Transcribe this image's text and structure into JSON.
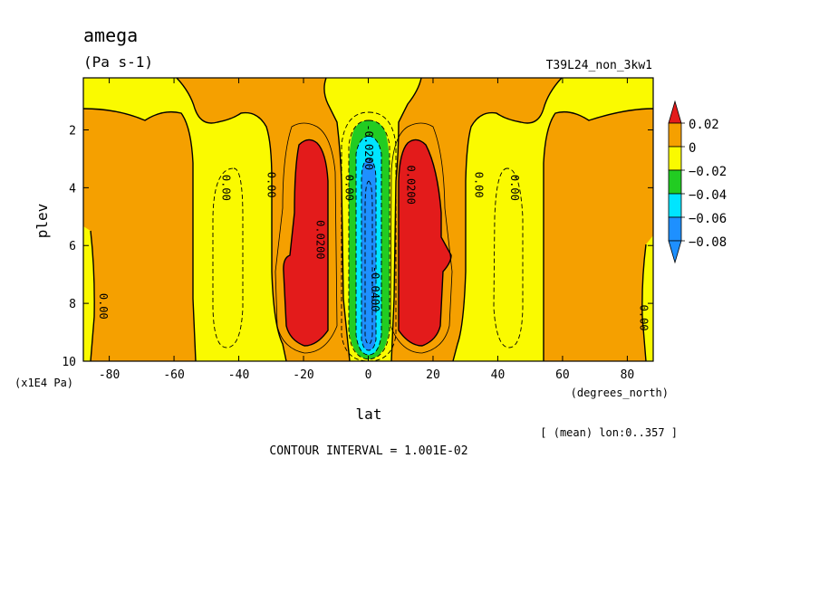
{
  "chart_data": {
    "type": "heatmap",
    "title": "amega",
    "units": "(Pa s-1)",
    "run_label": "T39L24_non_3kw1",
    "xlabel": "lat",
    "x_units": "(degrees_north)",
    "ylabel": "plev",
    "y_units": "(x1E4 Pa)",
    "xlim": [
      -88,
      88
    ],
    "ylim": [
      10,
      0.2
    ],
    "xticks": [
      -80,
      -60,
      -40,
      -20,
      0,
      20,
      40,
      60,
      80
    ],
    "xtick_labels": [
      "-80",
      "-60",
      "-40",
      "-20",
      "0",
      "20",
      "40",
      "60",
      "80"
    ],
    "yticks": [
      2,
      4,
      6,
      8,
      10
    ],
    "ytick_labels": [
      "2",
      "4",
      "6",
      "8",
      "10"
    ],
    "colorbar": {
      "levels": [
        0.02,
        0,
        -0.02,
        -0.04,
        -0.06,
        -0.08
      ],
      "labels": [
        "0.02",
        "0",
        "−0.02",
        "−0.04",
        "−0.06",
        "−0.08"
      ],
      "colors": [
        "#e31b1b",
        "#f5a000",
        "#fafa00",
        "#22cc22",
        "#00e5ff",
        "#1e90ff"
      ]
    },
    "contour_labels": [
      {
        "text": "0.00",
        "lat": -83,
        "p": 8.1
      },
      {
        "text": "0.00",
        "lat": -45,
        "p": 4.0
      },
      {
        "text": "0.00",
        "lat": -31,
        "p": 3.9
      },
      {
        "text": "0.0200",
        "lat": -16,
        "p": 5.8
      },
      {
        "text": "0.00",
        "lat": -7,
        "p": 4.0
      },
      {
        "text": "0.00",
        "lat": 33,
        "p": 3.9
      },
      {
        "text": "0.0200",
        "lat": 12,
        "p": 3.9
      },
      {
        "text": "0.00",
        "lat": 44,
        "p": 4.0
      },
      {
        "text": "0.00",
        "lat": 84,
        "p": 8.5
      },
      {
        "text": "-0.0200",
        "lat": -1,
        "p": 2.6
      },
      {
        "text": "-0.0400",
        "lat": 1,
        "p": 7.5
      }
    ],
    "description_note": "",
    "mean_note": "[ (mean) lon:0..357 ]",
    "contour_interval": "CONTOUR INTERVAL = 1.001E-02"
  }
}
